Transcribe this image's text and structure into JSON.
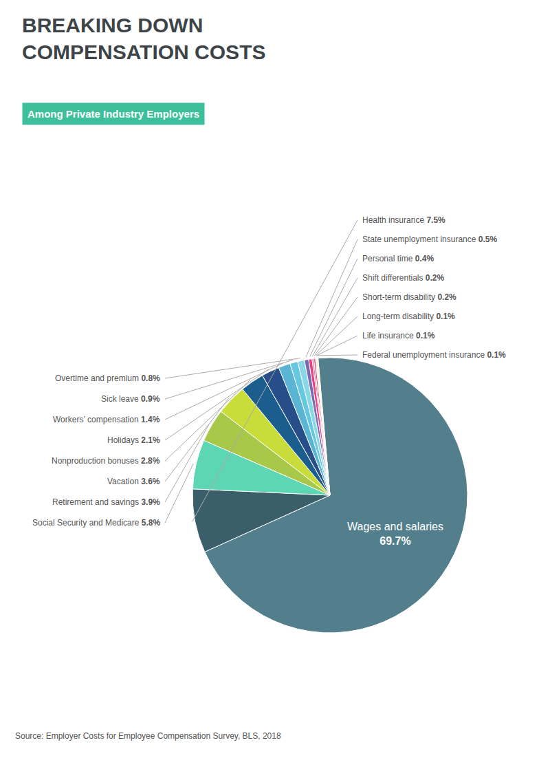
{
  "chart_data": {
    "type": "pie",
    "title": "BREAKING DOWN\nCOMPENSATION COSTS",
    "subtitle": "Among Private Industry Employers",
    "categories": [
      "Wages and salaries",
      "Health insurance",
      "Social Security and Medicare",
      "Retirement and savings",
      "Vacation",
      "Nonproduction bonuses",
      "Holidays",
      "Workers’ compensation",
      "Sick leave",
      "Overtime and premium",
      "State unemployment insurance",
      "Personal time",
      "Shift differentials",
      "Short-term disability",
      "Long-term disability",
      "Life insurance",
      "Federal unemployment insurance"
    ],
    "values": [
      69.7,
      7.5,
      5.8,
      3.9,
      3.6,
      2.8,
      2.1,
      1.4,
      0.9,
      0.8,
      0.5,
      0.4,
      0.2,
      0.2,
      0.1,
      0.1,
      0.1
    ],
    "value_labels": [
      "69.7%",
      "7.5%",
      "5.8%",
      "3.9%",
      "3.6%",
      "2.8%",
      "2.1%",
      "1.4%",
      "0.9%",
      "0.8%",
      "0.5%",
      "0.4%",
      "0.2%",
      "0.2%",
      "0.1%",
      "0.1%",
      "0.1%"
    ],
    "colors": [
      "#537f8c",
      "#3a5f6a",
      "#5dd6b3",
      "#a8c84a",
      "#c8dc3a",
      "#1b5e8e",
      "#274e88",
      "#5ab4d4",
      "#66c8e0",
      "#88d8e8",
      "#7b68b0",
      "#e84080",
      "#e878a8",
      "#e84860",
      "#f090a0",
      "#f0b870",
      "#d4d870"
    ],
    "data_labels": true,
    "annotations": [
      "Source: Employer Costs for Employee Compensation Survey, BLS, 2018"
    ]
  }
}
